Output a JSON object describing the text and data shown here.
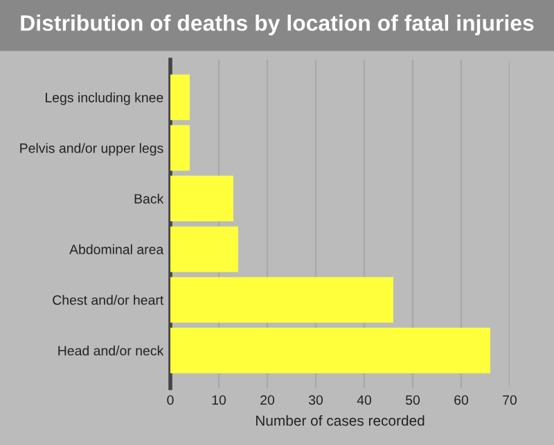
{
  "chart_data": {
    "type": "bar",
    "orientation": "horizontal",
    "title": "Distribution of deaths by location of fatal injuries",
    "xlabel": "Number of cases recorded",
    "categories": [
      "Legs including knee",
      "Pelvis and/or upper legs",
      "Back",
      "Abdominal area",
      "Chest and/or heart",
      "Head and/or neck"
    ],
    "values": [
      4,
      4,
      13,
      14,
      46,
      66
    ],
    "color": "#ffff3c",
    "xlim": [
      0,
      70
    ],
    "xticks": [
      0,
      10,
      20,
      30,
      40,
      50,
      60,
      70
    ],
    "grid": "x",
    "legend": false
  }
}
